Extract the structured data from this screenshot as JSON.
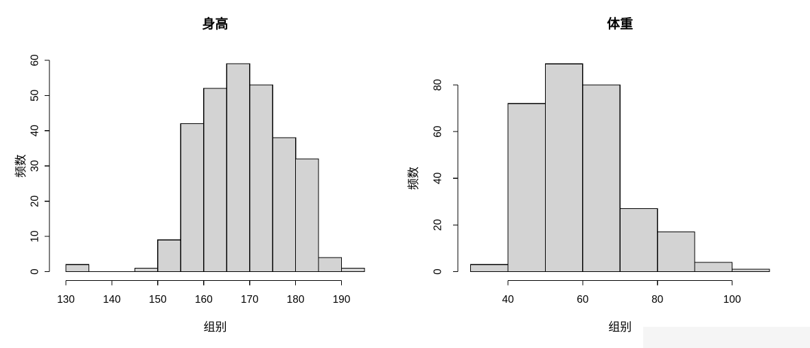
{
  "figure": {
    "background": "#ffffff",
    "watermark_strip_color": "#f5f5f5"
  },
  "chart_data": [
    {
      "type": "bar",
      "subtype": "histogram",
      "title": "身高",
      "xlabel": "组别",
      "ylabel": "频数",
      "bin_start": 130,
      "bin_width": 5,
      "bin_edges": [
        130,
        135,
        140,
        145,
        150,
        155,
        160,
        165,
        170,
        175,
        180,
        185,
        190,
        195
      ],
      "counts": [
        2,
        0,
        0,
        1,
        9,
        42,
        52,
        59,
        53,
        38,
        32,
        4,
        1
      ],
      "x_ticks": [
        130,
        140,
        150,
        160,
        170,
        180,
        190
      ],
      "y_ticks": [
        0,
        10,
        20,
        30,
        40,
        50,
        60
      ],
      "xlim": [
        130,
        195
      ],
      "ylim": [
        0,
        60
      ],
      "grid": false,
      "legend": false,
      "bar_fill": "#d3d3d3",
      "bar_stroke": "#000000",
      "axis_color": "#000000"
    },
    {
      "type": "bar",
      "subtype": "histogram",
      "title": "体重",
      "xlabel": "组别",
      "ylabel": "频数",
      "bin_start": 30,
      "bin_width": 10,
      "bin_edges": [
        30,
        40,
        50,
        60,
        70,
        80,
        90,
        100,
        110
      ],
      "counts": [
        3,
        72,
        89,
        80,
        27,
        17,
        4,
        1
      ],
      "x_ticks": [
        40,
        60,
        80,
        100
      ],
      "y_ticks": [
        0,
        20,
        40,
        60,
        80
      ],
      "xlim": [
        30,
        110
      ],
      "ylim": [
        0,
        90
      ],
      "grid": false,
      "legend": false,
      "bar_fill": "#d3d3d3",
      "bar_stroke": "#000000",
      "axis_color": "#000000"
    }
  ]
}
